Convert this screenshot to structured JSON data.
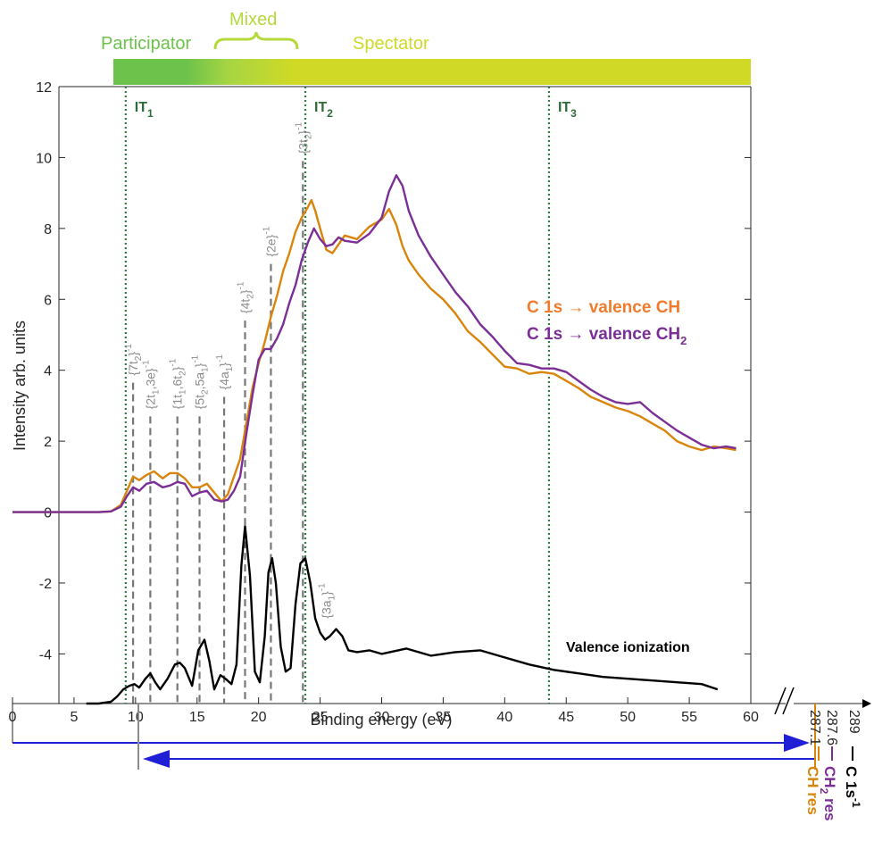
{
  "chart_data": {
    "type": "line",
    "xlabel": "Binding energy (eV)",
    "ylabel": "Intensity arb. units",
    "xlim": [
      0,
      60
    ],
    "ylim": [
      -5.4,
      12
    ],
    "x_ticks": [
      0,
      5,
      10,
      15,
      20,
      25,
      30,
      35,
      40,
      45,
      50,
      55,
      60
    ],
    "y_ticks": [
      12,
      10,
      8,
      6,
      4,
      2,
      0,
      -2,
      -4
    ],
    "y_tick_labels": [
      "12",
      "10",
      "8",
      "6",
      "4",
      "2",
      "0",
      "-2",
      "-4"
    ],
    "x_break_ticks": [
      {
        "label": "287.1",
        "color": "#d9840a"
      },
      {
        "label": "287.6",
        "color": "#7b2f96"
      },
      {
        "label": "289",
        "color": "#000000"
      }
    ],
    "regions": [
      {
        "label": "Participator",
        "color": "#6cc24a"
      },
      {
        "label": "Mixed",
        "color": "#b5d93a"
      },
      {
        "label": "Spectator",
        "color": "#cfd926"
      }
    ],
    "region_band": {
      "start": 9.2,
      "participator_end": 17.5,
      "mixed_end": 23.6,
      "end": 60
    },
    "ionization_thresholds": [
      {
        "name": "IT",
        "sub": "1",
        "x": 9.2
      },
      {
        "name": "IT",
        "sub": "2",
        "x": 23.8
      },
      {
        "name": "IT",
        "sub": "3",
        "x": 43.6
      }
    ],
    "assignments": [
      {
        "label": "{7t",
        "sub": "2",
        "tail": "}",
        "x": 9.8,
        "y_top": 3.65
      },
      {
        "label": "{2t",
        "sub": "1",
        "tail": ",3e}",
        "x": 11.2,
        "y_top": 2.7
      },
      {
        "label": "{1t",
        "sub": "1",
        "tail": ",6t",
        "sub2": "2",
        "tail2": "}",
        "x": 13.4,
        "y_top": 2.7
      },
      {
        "label": "{5t",
        "sub": "2",
        "tail": ",5a",
        "sub2": "1",
        "tail2": "}",
        "x": 15.2,
        "y_top": 2.7
      },
      {
        "label": "{4a",
        "sub": "1",
        "tail": "}",
        "x": 17.2,
        "y_top": 3.25
      },
      {
        "label": "{4t",
        "sub": "2",
        "tail": "}",
        "x": 18.9,
        "y_top": 5.4
      },
      {
        "label": "{2e}",
        "sub": "",
        "tail": "",
        "x": 21.0,
        "y_top": 7.0
      },
      {
        "label": "{3t",
        "sub": "2",
        "tail": "}",
        "x": 23.6,
        "y_top": 9.9
      },
      {
        "label": "{3a",
        "sub": "1",
        "tail": "}",
        "x": 25.5,
        "y_top": null
      }
    ],
    "series": [
      {
        "name": "C 1s → valence CH",
        "color": "#d9840a",
        "x": [
          0,
          7,
          8,
          8.8,
          9.3,
          9.8,
          10.3,
          10.9,
          11.5,
          12.2,
          12.8,
          13.4,
          14.0,
          14.6,
          15.2,
          15.8,
          16.4,
          17.0,
          17.5,
          18.0,
          18.5,
          19.0,
          19.5,
          20.0,
          20.5,
          21.0,
          21.5,
          22.0,
          22.5,
          23.0,
          23.5,
          24.0,
          24.3,
          24.6,
          25.0,
          25.5,
          26.0,
          26.5,
          27.0,
          28.0,
          29.0,
          30.0,
          30.6,
          31.2,
          31.7,
          32.2,
          33.0,
          34.0,
          35.0,
          36.0,
          37.0,
          38.0,
          39.0,
          40.0,
          41.0,
          42.0,
          43.0,
          44.0,
          45.0,
          46.0,
          47.0,
          48.0,
          49.0,
          50.0,
          51.0,
          52.0,
          53.0,
          54.0,
          55.0,
          55.5,
          56.0,
          57.0,
          58.0,
          58.8
        ],
        "y": [
          0,
          0,
          0.02,
          0.2,
          0.6,
          1.0,
          0.9,
          1.05,
          1.15,
          0.95,
          1.1,
          1.1,
          0.95,
          0.7,
          0.7,
          0.8,
          0.55,
          0.3,
          0.5,
          1.0,
          1.5,
          2.5,
          3.5,
          4.2,
          4.8,
          5.5,
          6.1,
          6.8,
          7.3,
          7.9,
          8.3,
          8.6,
          8.8,
          8.5,
          8.0,
          7.4,
          7.3,
          7.55,
          7.8,
          7.7,
          8.05,
          8.25,
          8.55,
          8.1,
          7.5,
          7.1,
          6.7,
          6.3,
          6.0,
          5.6,
          5.1,
          4.8,
          4.45,
          4.1,
          4.05,
          3.9,
          3.95,
          3.9,
          3.7,
          3.5,
          3.25,
          3.1,
          2.95,
          2.85,
          2.7,
          2.5,
          2.3,
          2.0,
          1.85,
          1.8,
          1.75,
          1.85,
          1.8,
          1.75
        ]
      },
      {
        "name": "C 1s → valence CH₂",
        "color": "#7b2f96",
        "x": [
          0,
          7,
          8,
          8.8,
          9.3,
          9.8,
          10.3,
          10.9,
          11.5,
          12.2,
          12.8,
          13.4,
          14.0,
          14.6,
          15.2,
          15.8,
          16.4,
          17.0,
          17.5,
          18.0,
          18.5,
          19.0,
          19.5,
          20.0,
          20.5,
          21.0,
          21.5,
          22.0,
          22.5,
          23.0,
          23.5,
          24.0,
          24.5,
          25.0,
          25.5,
          26.0,
          26.5,
          27.0,
          28.0,
          29.0,
          30.0,
          30.6,
          31.2,
          31.7,
          32.2,
          33.0,
          34.0,
          35.0,
          36.0,
          37.0,
          38.0,
          39.0,
          40.0,
          41.0,
          42.0,
          43.0,
          44.0,
          45.0,
          46.0,
          47.0,
          48.0,
          49.0,
          50.0,
          51.0,
          52.0,
          53.0,
          54.0,
          55.0,
          56.0,
          57.0,
          58.0,
          58.8
        ],
        "y": [
          0,
          0,
          0.02,
          0.15,
          0.45,
          0.7,
          0.6,
          0.8,
          0.85,
          0.7,
          0.75,
          0.85,
          0.8,
          0.45,
          0.55,
          0.6,
          0.35,
          0.3,
          0.35,
          0.6,
          1.0,
          2.2,
          3.3,
          4.3,
          4.6,
          4.6,
          4.9,
          5.3,
          5.9,
          6.4,
          7.1,
          7.6,
          8.0,
          7.7,
          7.5,
          7.55,
          7.75,
          7.65,
          7.6,
          7.85,
          8.3,
          9.05,
          9.5,
          9.2,
          8.5,
          7.8,
          7.2,
          6.7,
          6.2,
          5.8,
          5.3,
          4.95,
          4.55,
          4.2,
          4.15,
          4.05,
          4.05,
          3.95,
          3.7,
          3.45,
          3.25,
          3.1,
          3.05,
          3.1,
          2.8,
          2.55,
          2.3,
          2.1,
          1.9,
          1.8,
          1.85,
          1.8
        ]
      },
      {
        "name": "Valence ionization",
        "color": "#000000",
        "x": [
          6,
          7,
          8,
          8.5,
          9.0,
          9.5,
          9.9,
          10.3,
          10.8,
          11.2,
          11.6,
          12.0,
          12.6,
          13.2,
          13.6,
          14.0,
          14.6,
          15.1,
          15.6,
          16.0,
          16.4,
          16.9,
          17.3,
          17.8,
          18.2,
          18.6,
          18.9,
          19.3,
          19.7,
          20.1,
          20.5,
          20.8,
          21.1,
          21.4,
          21.8,
          22.2,
          22.6,
          23.0,
          23.4,
          23.8,
          24.2,
          24.6,
          25.0,
          25.4,
          25.8,
          26.3,
          26.8,
          27.3,
          28.0,
          29.0,
          30.0,
          32.0,
          34.0,
          36.0,
          38.0,
          40.0,
          42.0,
          44.0,
          46.0,
          48.0,
          50.0,
          52.0,
          54.0,
          56.0,
          57.3
        ],
        "y": [
          -5.4,
          -5.4,
          -5.35,
          -5.2,
          -5.0,
          -4.9,
          -4.85,
          -4.95,
          -4.7,
          -4.55,
          -4.8,
          -5.0,
          -4.7,
          -4.3,
          -4.25,
          -4.4,
          -4.9,
          -3.9,
          -3.6,
          -4.2,
          -5.0,
          -4.6,
          -4.7,
          -4.85,
          -4.3,
          -1.5,
          -0.4,
          -1.8,
          -4.5,
          -4.8,
          -3.5,
          -1.7,
          -1.3,
          -2.0,
          -3.8,
          -4.5,
          -4.4,
          -2.6,
          -1.45,
          -1.3,
          -2.0,
          -3.0,
          -3.4,
          -3.6,
          -3.5,
          -3.3,
          -3.5,
          -3.9,
          -3.95,
          -3.9,
          -4.0,
          -3.85,
          -4.05,
          -3.95,
          -3.9,
          -4.1,
          -4.3,
          -4.45,
          -4.55,
          -4.65,
          -4.7,
          -4.75,
          -4.8,
          -4.85,
          -5.0
        ]
      }
    ],
    "legend": [
      {
        "prefix": "C 1s ",
        "arrow": "→",
        "suffix": " valence CH",
        "sub": "",
        "color": "#f07b2c"
      },
      {
        "prefix": "C 1s ",
        "arrow": "→",
        "suffix": " valence CH",
        "sub": "2",
        "color": "#7b2f96"
      }
    ],
    "series_label": "Valence ionization",
    "side_labels": [
      {
        "text": "CH res",
        "sub": "",
        "color": "#d9840a"
      },
      {
        "text": "CH",
        "sub": "2",
        "tail": " res",
        "color": "#7b2f96"
      },
      {
        "text": "C 1s",
        "sup": "-1",
        "color": "#000000"
      }
    ]
  }
}
